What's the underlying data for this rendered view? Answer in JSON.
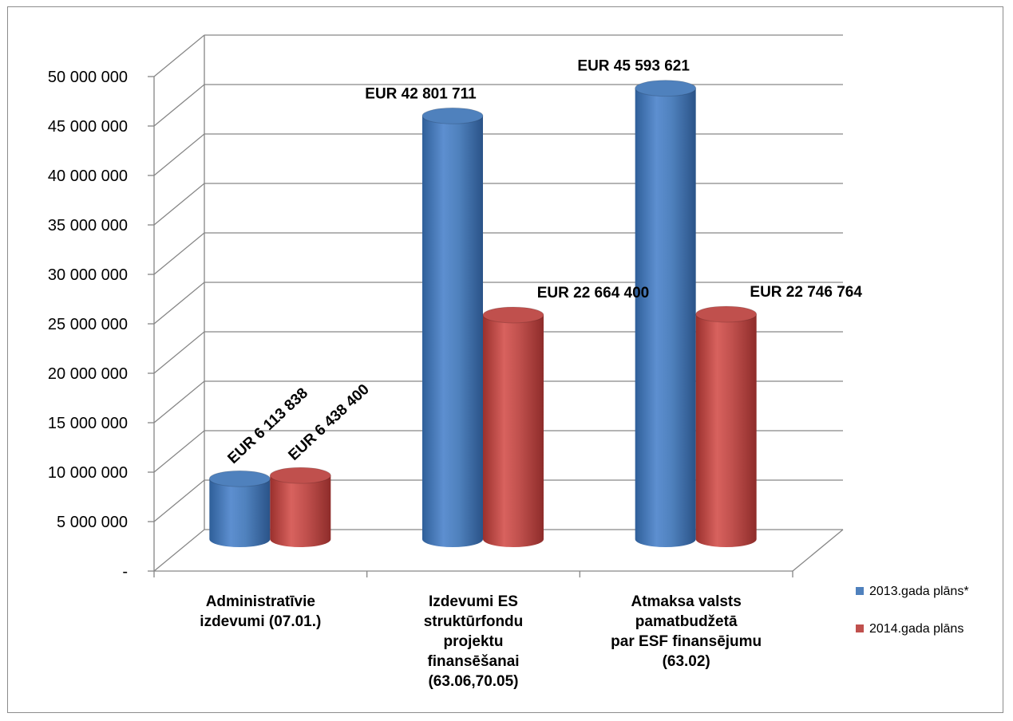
{
  "chart_data": {
    "type": "bar",
    "style": "3d-cylinder",
    "categories": [
      [
        "Administratīvie",
        "izdevumi (07.01.)"
      ],
      [
        "Izdevumi ES",
        "struktūrfondu",
        "projektu",
        "finansēšanai",
        "(63.06,70.05)"
      ],
      [
        "Atmaksa valsts",
        "pamatbudžetā",
        "par ESF finansējumu",
        "(63.02)"
      ]
    ],
    "series": [
      {
        "name": "2013.gada plāns*",
        "color": "#4f81bd",
        "values": [
          6113838,
          42801711,
          45593621
        ],
        "labels": [
          "EUR 6 113 838",
          "EUR  42 801 711",
          "EUR  45 593 621"
        ]
      },
      {
        "name": "2014.gada plāns",
        "color": "#c0504d",
        "values": [
          6438400,
          22664400,
          22746764
        ],
        "labels": [
          "EUR 6 438 400",
          "EUR  22 664 400",
          "EUR  22 746 764"
        ]
      }
    ],
    "ylim": [
      0,
      50000000
    ],
    "yticks": [
      0,
      5000000,
      10000000,
      15000000,
      20000000,
      25000000,
      30000000,
      35000000,
      40000000,
      45000000,
      50000000
    ],
    "ytick_labels": [
      "-",
      "5 000 000",
      "10 000 000",
      "15 000 000",
      "20 000 000",
      "25 000 000",
      "30 000 000",
      "35 000 000",
      "40 000 000",
      "45 000 000",
      "50 000 000"
    ],
    "grid": true,
    "legend_position": "right",
    "title": "",
    "xlabel": "",
    "ylabel": ""
  }
}
